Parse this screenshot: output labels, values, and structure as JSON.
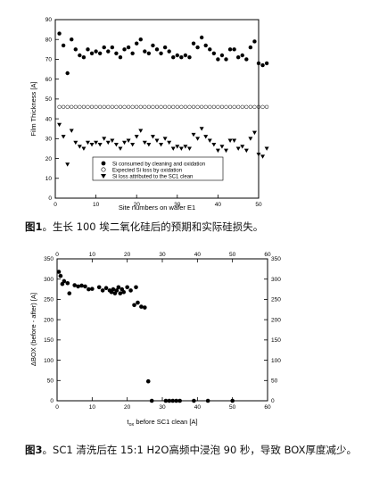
{
  "captions": {
    "fig1_label": "图1",
    "fig1_text": "。生长 100 埃二氧化硅后的预期和实际硅损失。",
    "fig2_label": "图3",
    "fig2_text": "。SC1 清洗后在 15:1 H2O高频中浸泡 90 秒，导致 BOX厚度减少。"
  },
  "chart_data": [
    {
      "type": "scatter",
      "xlabel": "Site numbers on wafer E1",
      "ylabel": "Film Thickness [A]",
      "xlim": [
        0,
        50
      ],
      "ylim": [
        0,
        90
      ],
      "xticks": [
        0,
        10,
        20,
        30,
        40,
        50
      ],
      "yticks": [
        0,
        10,
        20,
        30,
        40,
        50,
        60,
        70,
        80,
        90
      ],
      "legend_position": "bottom-center",
      "series": [
        {
          "name": "Si consumed by cleaning and oxidation",
          "marker": "filled-circle",
          "x": [
            1,
            2,
            3,
            4,
            5,
            6,
            7,
            8,
            9,
            10,
            11,
            12,
            13,
            14,
            15,
            16,
            17,
            18,
            19,
            20,
            21,
            22,
            23,
            24,
            25,
            26,
            27,
            28,
            29,
            30,
            31,
            32,
            33,
            34,
            35,
            36,
            37,
            38,
            39,
            40,
            41,
            42,
            43,
            44,
            45,
            46,
            47,
            48,
            49,
            50,
            51,
            52
          ],
          "y": [
            83,
            77,
            63,
            80,
            75,
            72,
            71,
            75,
            73,
            74,
            73,
            76,
            74,
            76,
            73,
            71,
            75,
            76,
            73,
            78,
            80,
            74,
            73,
            77,
            75,
            73,
            76,
            74,
            71,
            72,
            71,
            72,
            71,
            78,
            76,
            81,
            77,
            75,
            73,
            70,
            72,
            70,
            75,
            75,
            71,
            72,
            70,
            76,
            79,
            68,
            67,
            68
          ]
        },
        {
          "name": "Expected Si loss by oxidation",
          "marker": "open-circle",
          "x": [
            1,
            2,
            3,
            4,
            5,
            6,
            7,
            8,
            9,
            10,
            11,
            12,
            13,
            14,
            15,
            16,
            17,
            18,
            19,
            20,
            21,
            22,
            23,
            24,
            25,
            26,
            27,
            28,
            29,
            30,
            31,
            32,
            33,
            34,
            35,
            36,
            37,
            38,
            39,
            40,
            41,
            42,
            43,
            44,
            45,
            46,
            47,
            48,
            49,
            50,
            51,
            52
          ],
          "y": [
            46,
            46,
            46,
            46,
            46,
            46,
            46,
            46,
            46,
            46,
            46,
            46,
            46,
            46,
            46,
            46,
            46,
            46,
            46,
            46,
            46,
            46,
            46,
            46,
            46,
            46,
            46,
            46,
            46,
            46,
            46,
            46,
            46,
            46,
            46,
            46,
            46,
            46,
            46,
            46,
            46,
            46,
            46,
            46,
            46,
            46,
            46,
            46,
            46,
            46,
            46,
            46
          ]
        },
        {
          "name": "Si loss attributed to the SC1 clean",
          "marker": "filled-triangle-down",
          "x": [
            1,
            2,
            3,
            4,
            5,
            6,
            7,
            8,
            9,
            10,
            11,
            12,
            13,
            14,
            15,
            16,
            17,
            18,
            19,
            20,
            21,
            22,
            23,
            24,
            25,
            26,
            27,
            28,
            29,
            30,
            31,
            32,
            33,
            34,
            35,
            36,
            37,
            38,
            39,
            40,
            41,
            42,
            43,
            44,
            45,
            46,
            47,
            48,
            49,
            50,
            51,
            52
          ],
          "y": [
            37,
            31,
            17,
            34,
            28,
            26,
            25,
            28,
            27,
            28,
            27,
            30,
            28,
            29,
            27,
            25,
            28,
            29,
            27,
            31,
            34,
            28,
            27,
            31,
            29,
            27,
            30,
            28,
            25,
            26,
            25,
            26,
            25,
            32,
            30,
            35,
            31,
            29,
            27,
            24,
            26,
            24,
            29,
            29,
            25,
            26,
            24,
            30,
            33,
            22,
            21,
            25
          ]
        }
      ]
    },
    {
      "type": "scatter",
      "xlabel": "t_ox before SC1 clean [A]",
      "xlabel_main": "t",
      "xlabel_sub": "ox",
      "xlabel_rest": " before SC1 clean [A]",
      "ylabel": "ΔBOX (before - after) [A]",
      "xlim": [
        0,
        60
      ],
      "ylim": [
        0,
        350
      ],
      "xticks": [
        0,
        10,
        20,
        30,
        40,
        50,
        60
      ],
      "yticks": [
        0,
        50,
        100,
        150,
        200,
        250,
        300,
        350
      ],
      "series": [
        {
          "x": [
            0.5,
            1,
            1.5,
            2,
            3,
            3.5,
            5,
            6,
            7,
            8,
            9,
            10,
            12,
            13,
            14,
            15,
            15.5,
            16,
            16.5,
            17,
            17.5,
            18,
            18.5,
            19,
            20,
            21,
            22,
            22.5,
            23,
            24,
            25,
            26,
            27,
            31,
            32,
            33,
            34,
            35,
            39,
            43,
            50
          ],
          "y": [
            318,
            308,
            288,
            295,
            290,
            265,
            285,
            282,
            284,
            282,
            275,
            276,
            280,
            272,
            278,
            272,
            268,
            275,
            265,
            272,
            280,
            265,
            275,
            268,
            280,
            272,
            236,
            280,
            242,
            232,
            230,
            48,
            0,
            0,
            0,
            0,
            0,
            0,
            0,
            0,
            0
          ]
        }
      ]
    }
  ]
}
